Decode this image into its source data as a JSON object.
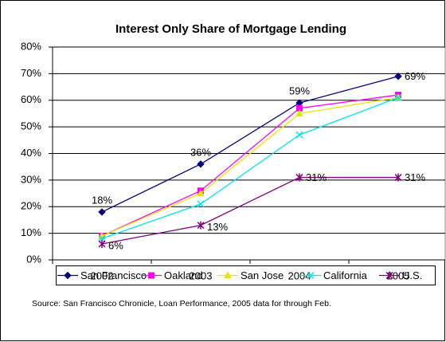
{
  "chart_data": {
    "type": "line",
    "title": "Interest Only Share of Mortgage Lending",
    "note": "Source: San Francisco Chronicle, Loan Performance, 2005 data for through Feb.",
    "categories": [
      "2002",
      "2003",
      "2004",
      "2005"
    ],
    "ylim": [
      0,
      80
    ],
    "yticks": [
      {
        "value": 0,
        "label": "0%"
      },
      {
        "value": 10,
        "label": "10%"
      },
      {
        "value": 20,
        "label": "20%"
      },
      {
        "value": 30,
        "label": "30%"
      },
      {
        "value": 40,
        "label": "40%"
      },
      {
        "value": 50,
        "label": "50%"
      },
      {
        "value": 60,
        "label": "60%"
      },
      {
        "value": 70,
        "label": "70%"
      },
      {
        "value": 80,
        "label": "80%"
      }
    ],
    "grid": true,
    "legend": "bottom",
    "series": [
      {
        "name": "San Francisco",
        "color": "#000080",
        "marker": "diamond",
        "values": [
          18,
          36,
          59,
          69
        ],
        "value_labels": [
          "18%",
          "36%",
          "59%",
          "69%"
        ]
      },
      {
        "name": "Oakland",
        "color": "#ff00ff",
        "marker": "square",
        "values": [
          9,
          26,
          57,
          62
        ]
      },
      {
        "name": "San Jose",
        "color": "#e6e600",
        "marker": "triangle",
        "values": [
          9,
          25,
          55,
          61
        ]
      },
      {
        "name": "California",
        "color": "#00e5ee",
        "marker": "x",
        "values": [
          8,
          21,
          47,
          61
        ]
      },
      {
        "name": "U.S.",
        "color": "#800080",
        "marker": "star",
        "values": [
          6,
          13,
          31,
          31
        ],
        "value_labels": [
          "6%",
          "13%",
          "31%",
          "31%"
        ]
      }
    ]
  }
}
